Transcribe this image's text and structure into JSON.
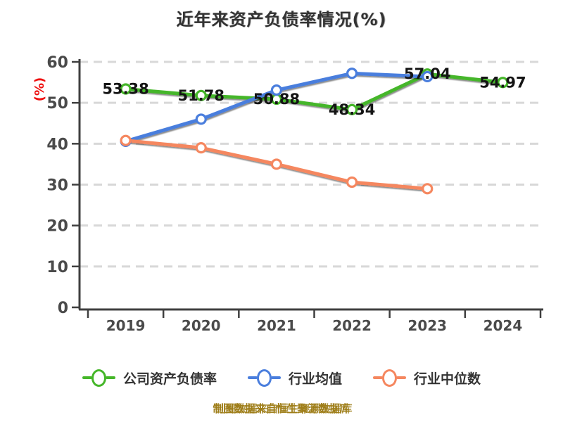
{
  "chart_data": {
    "type": "line",
    "title": "近年来资产负债率情况(%)",
    "ylabel": "(%)",
    "ylabel_color": "#ee1010",
    "categories": [
      "2019",
      "2020",
      "2021",
      "2022",
      "2023",
      "2024"
    ],
    "ylim": [
      0,
      60
    ],
    "y_ticks": [
      0,
      10,
      20,
      30,
      40,
      50,
      60
    ],
    "grid": "horizontal-dashed",
    "legend_position": "bottom",
    "series": [
      {
        "name": "公司资产负债率",
        "slug": "company-debt-ratio",
        "color": "#45b629",
        "values": [
          53.38,
          51.78,
          50.88,
          48.34,
          57.04,
          54.97
        ],
        "point_labels": [
          "53.38",
          "51.78",
          "50.88",
          "48.34",
          "57.04",
          "54.97"
        ]
      },
      {
        "name": "行业均值",
        "slug": "industry-average",
        "color": "#4a7edd",
        "values": [
          40.6,
          46.0,
          53.1,
          57.2,
          56.4,
          null
        ],
        "point_labels": null
      },
      {
        "name": "行业中位数",
        "slug": "industry-median",
        "color": "#f5875f",
        "values": [
          40.8,
          39.0,
          35.0,
          30.6,
          29.0,
          null
        ],
        "point_labels": null
      }
    ],
    "footnote": "制图数据来自恒生聚源数据库"
  },
  "style_colors": {
    "axis": "#3f3f3f",
    "gridline": "#d8d8d8",
    "tick_label": "#4a4a4a",
    "data_label": "#141414",
    "title": "#333333",
    "footer": "#9e7d18"
  }
}
